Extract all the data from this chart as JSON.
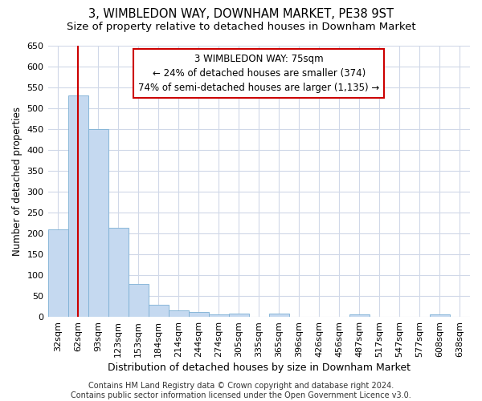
{
  "title": "3, WIMBLEDON WAY, DOWNHAM MARKET, PE38 9ST",
  "subtitle": "Size of property relative to detached houses in Downham Market",
  "xlabel": "Distribution of detached houses by size in Downham Market",
  "ylabel": "Number of detached properties",
  "categories": [
    "32sqm",
    "62sqm",
    "93sqm",
    "123sqm",
    "153sqm",
    "184sqm",
    "214sqm",
    "244sqm",
    "274sqm",
    "305sqm",
    "335sqm",
    "365sqm",
    "396sqm",
    "426sqm",
    "456sqm",
    "487sqm",
    "517sqm",
    "547sqm",
    "577sqm",
    "608sqm",
    "638sqm"
  ],
  "values": [
    210,
    530,
    450,
    213,
    78,
    28,
    16,
    12,
    5,
    8,
    0,
    7,
    0,
    0,
    0,
    5,
    0,
    0,
    0,
    5,
    0
  ],
  "bar_color": "#c5d9f0",
  "bar_edge_color": "#7bafd4",
  "vline_x": 1.0,
  "vline_color": "#cc0000",
  "annotation_line1": "3 WIMBLEDON WAY: 75sqm",
  "annotation_line2": "← 24% of detached houses are smaller (374)",
  "annotation_line3": "74% of semi-detached houses are larger (1,135) →",
  "annotation_box_color": "#ffffff",
  "annotation_box_edge_color": "#cc0000",
  "ylim": [
    0,
    650
  ],
  "yticks": [
    0,
    50,
    100,
    150,
    200,
    250,
    300,
    350,
    400,
    450,
    500,
    550,
    600,
    650
  ],
  "footer_line1": "Contains HM Land Registry data © Crown copyright and database right 2024.",
  "footer_line2": "Contains public sector information licensed under the Open Government Licence v3.0.",
  "bg_color": "#ffffff",
  "plot_bg_color": "#ffffff",
  "title_fontsize": 10.5,
  "subtitle_fontsize": 9.5,
  "xlabel_fontsize": 9,
  "ylabel_fontsize": 8.5,
  "tick_fontsize": 8,
  "annotation_fontsize": 8.5,
  "footer_fontsize": 7
}
